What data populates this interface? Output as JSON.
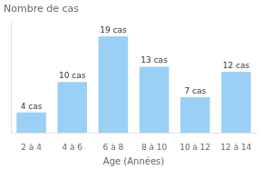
{
  "chart_data": {
    "type": "bar",
    "title": "Nombre de cas",
    "xlabel": "Age (Années)",
    "categories": [
      "2 à 4",
      "4 à 6",
      "6 à 8",
      "8 à 10",
      "10 à 12",
      "12 à 14"
    ],
    "values": [
      4,
      10,
      19,
      13,
      7,
      12
    ],
    "value_labels": [
      "4 cas",
      "10 cas",
      "19 cas",
      "13 cas",
      "7 cas",
      "12 cas"
    ],
    "data_labels": true,
    "ylim": [
      0,
      22
    ],
    "tick_labels": "x",
    "grid": false
  }
}
